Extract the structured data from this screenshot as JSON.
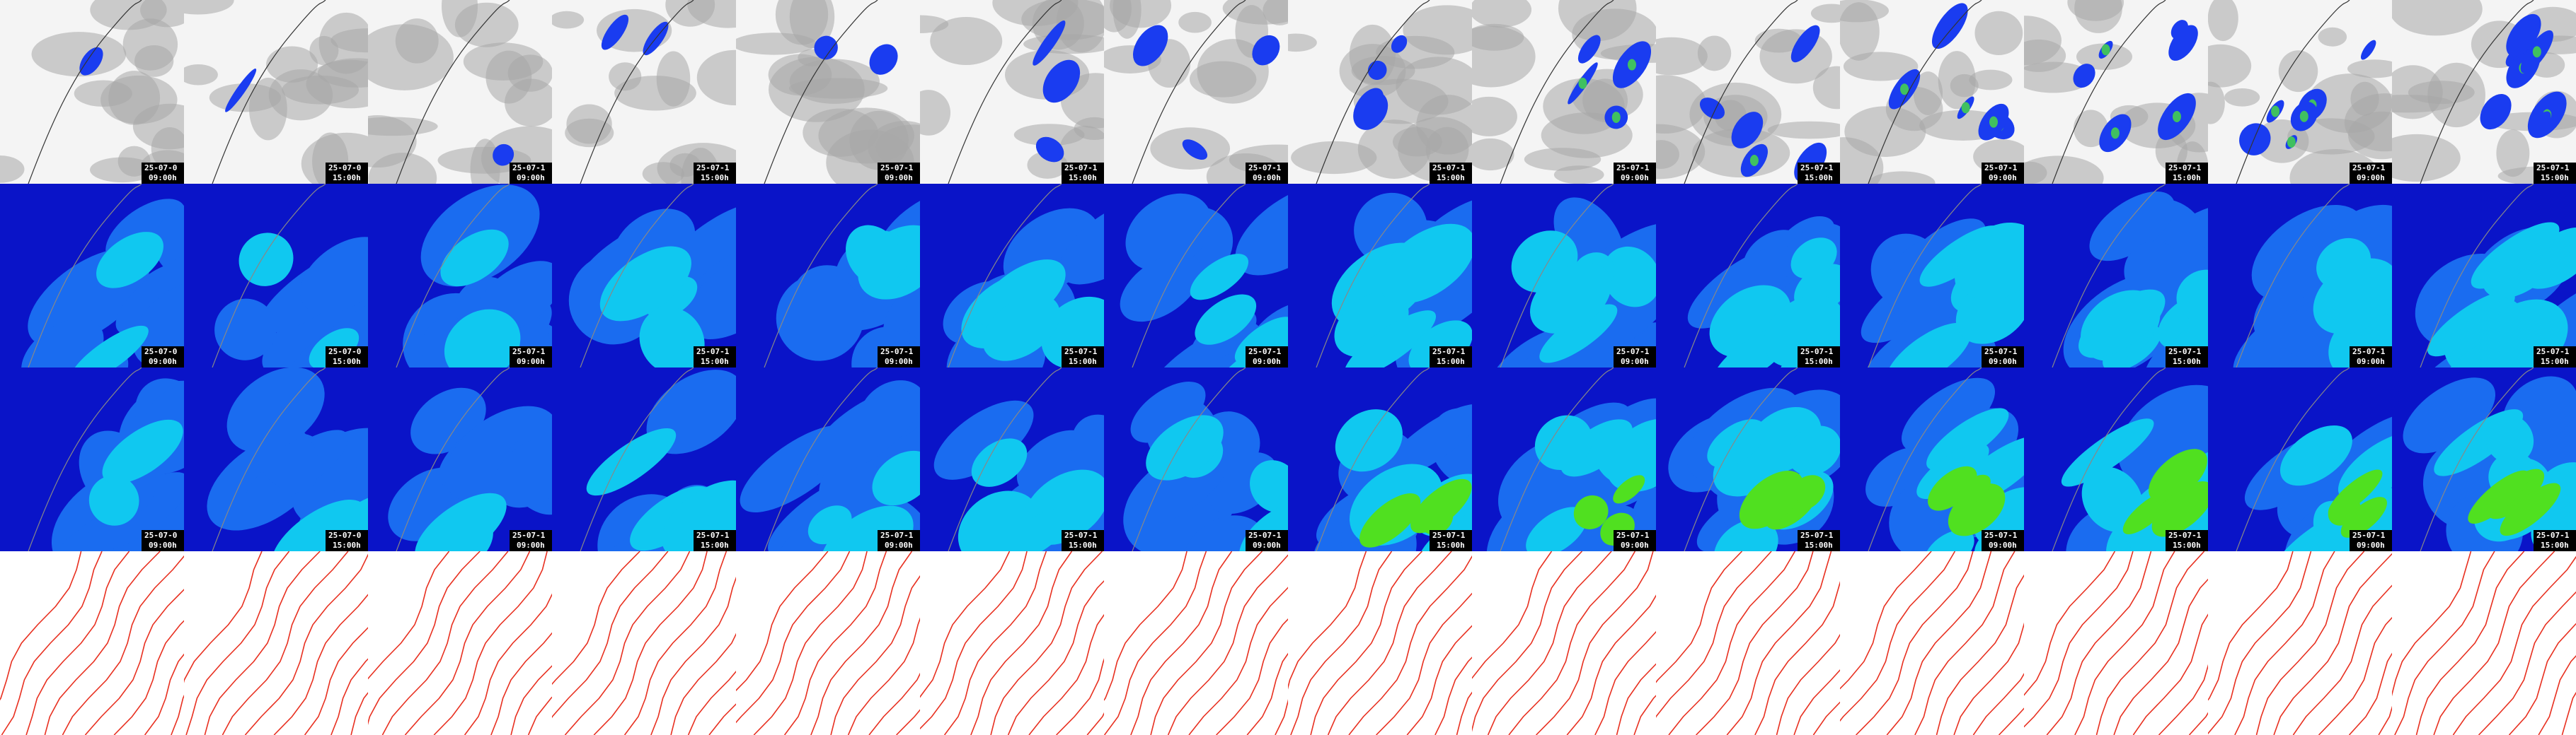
{
  "timestamps": [
    {
      "date": "25-07-0",
      "time": "09:00h"
    },
    {
      "date": "25-07-0",
      "time": "15:00h"
    },
    {
      "date": "25-07-1",
      "time": "09:00h"
    },
    {
      "date": "25-07-1",
      "time": "15:00h"
    },
    {
      "date": "25-07-1",
      "time": "09:00h"
    },
    {
      "date": "25-07-1",
      "time": "15:00h"
    },
    {
      "date": "25-07-1",
      "time": "09:00h"
    },
    {
      "date": "25-07-1",
      "time": "15:00h"
    },
    {
      "date": "25-07-1",
      "time": "09:00h"
    },
    {
      "date": "25-07-1",
      "time": "15:00h"
    },
    {
      "date": "25-07-1",
      "time": "09:00h"
    },
    {
      "date": "25-07-1",
      "time": "15:00h"
    },
    {
      "date": "25-07-1",
      "time": "09:00h"
    },
    {
      "date": "25-07-1",
      "time": "15:00h"
    }
  ]
}
